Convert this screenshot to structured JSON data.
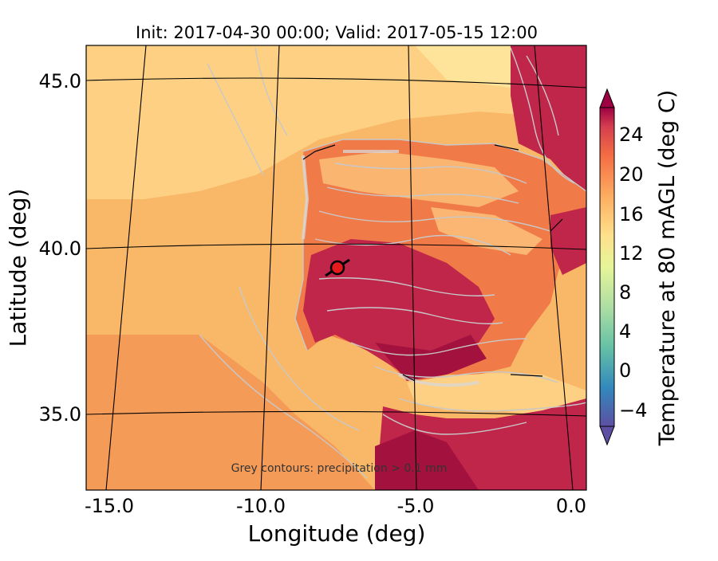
{
  "title": "Init: 2017-04-30 00:00; Valid: 2017-05-15 12:00",
  "xlabel": "Longitude (deg)",
  "ylabel": "Latitude (deg)",
  "x_ticks": [
    "-15.0",
    "-10.0",
    "-5.0",
    "0.0"
  ],
  "y_ticks": [
    "45.0",
    "40.0",
    "35.0"
  ],
  "annotation": "Grey contours: precipitation > 0.1 mm",
  "colorbar": {
    "label": "Temperature at 80 mAGL (deg C)",
    "ticks": [
      "24",
      "20",
      "16",
      "12",
      "8",
      "4",
      "0",
      "−4"
    ],
    "range": [
      -6,
      26
    ],
    "colormap": "Spectral_r"
  },
  "map": {
    "region": "Iberian Peninsula",
    "lon_range": [
      -15.8,
      0.2
    ],
    "lat_range": [
      32.8,
      46.1
    ],
    "marker": {
      "lon": -7.7,
      "lat": 39.3,
      "color": "#e41a1c"
    }
  },
  "colors": {
    "sea": "#f9b868",
    "land_hot": "#c0254a",
    "land_warm": "#f07a48",
    "precip_contour": "#c8c8c8"
  }
}
